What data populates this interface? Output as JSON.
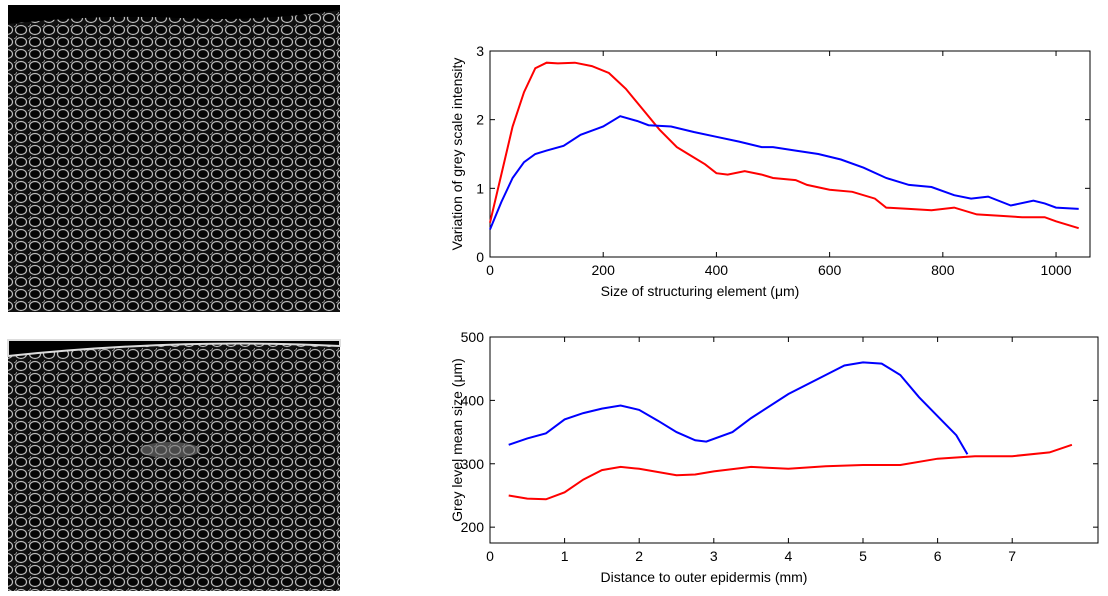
{
  "chart_data": [
    {
      "type": "line",
      "xlabel": "Size of structuring element (μm)",
      "ylabel": "Variation of grey scale intensity",
      "xlim": [
        0,
        1060
      ],
      "xticks": [
        0,
        200,
        400,
        600,
        800,
        1000
      ],
      "ylim": [
        0,
        3
      ],
      "yticks": [
        0,
        1,
        2,
        3
      ],
      "series": [
        {
          "color": "#ff0000",
          "x": [
            0,
            20,
            40,
            60,
            80,
            100,
            120,
            150,
            180,
            210,
            240,
            270,
            300,
            330,
            350,
            380,
            400,
            420,
            450,
            480,
            500,
            540,
            560,
            600,
            640,
            680,
            700,
            740,
            780,
            820,
            860,
            900,
            940,
            980,
            1000,
            1040
          ],
          "values": [
            0.5,
            1.2,
            1.9,
            2.4,
            2.75,
            2.83,
            2.82,
            2.83,
            2.78,
            2.68,
            2.45,
            2.15,
            1.85,
            1.6,
            1.5,
            1.35,
            1.22,
            1.2,
            1.25,
            1.2,
            1.15,
            1.12,
            1.05,
            0.98,
            0.95,
            0.85,
            0.72,
            0.7,
            0.68,
            0.72,
            0.62,
            0.6,
            0.58,
            0.58,
            0.52,
            0.42
          ]
        },
        {
          "color": "#0000ff",
          "x": [
            0,
            20,
            40,
            60,
            80,
            100,
            130,
            160,
            200,
            230,
            260,
            280,
            320,
            360,
            400,
            440,
            480,
            500,
            540,
            580,
            620,
            660,
            700,
            740,
            780,
            820,
            850,
            880,
            920,
            960,
            980,
            1000,
            1040
          ],
          "values": [
            0.4,
            0.8,
            1.15,
            1.38,
            1.5,
            1.55,
            1.62,
            1.78,
            1.9,
            2.05,
            1.98,
            1.92,
            1.9,
            1.82,
            1.75,
            1.68,
            1.6,
            1.6,
            1.55,
            1.5,
            1.42,
            1.3,
            1.15,
            1.05,
            1.02,
            0.9,
            0.85,
            0.88,
            0.75,
            0.82,
            0.78,
            0.72,
            0.7
          ]
        }
      ]
    },
    {
      "type": "line",
      "xlabel": "Distance to outer epidermis (mm)",
      "ylabel": "Grey level mean size (μm)",
      "xlim": [
        0,
        8.15
      ],
      "xticks": [
        0,
        1,
        2,
        3,
        4,
        5,
        6,
        7
      ],
      "ylim": [
        175,
        500
      ],
      "yticks": [
        200,
        300,
        400,
        500
      ],
      "series": [
        {
          "color": "#0000ff",
          "x": [
            0.25,
            0.5,
            0.75,
            1,
            1.25,
            1.5,
            1.75,
            2,
            2.25,
            2.5,
            2.75,
            2.9,
            3.25,
            3.5,
            4,
            4.5,
            4.75,
            5,
            5.25,
            5.5,
            5.75,
            6,
            6.25,
            6.4
          ],
          "values": [
            330,
            340,
            348,
            370,
            380,
            387,
            392,
            385,
            368,
            350,
            337,
            335,
            350,
            372,
            410,
            440,
            455,
            460,
            458,
            440,
            405,
            375,
            345,
            315
          ]
        },
        {
          "color": "#ff0000",
          "x": [
            0.25,
            0.5,
            0.75,
            1,
            1.25,
            1.5,
            1.75,
            2,
            2.5,
            2.75,
            3,
            3.5,
            4,
            4.5,
            5,
            5.5,
            6,
            6.5,
            7,
            7.5,
            7.8
          ],
          "values": [
            250,
            245,
            244,
            255,
            275,
            290,
            295,
            292,
            282,
            283,
            288,
            295,
            292,
            296,
            298,
            298,
            308,
            312,
            312,
            318,
            330
          ]
        }
      ]
    }
  ]
}
